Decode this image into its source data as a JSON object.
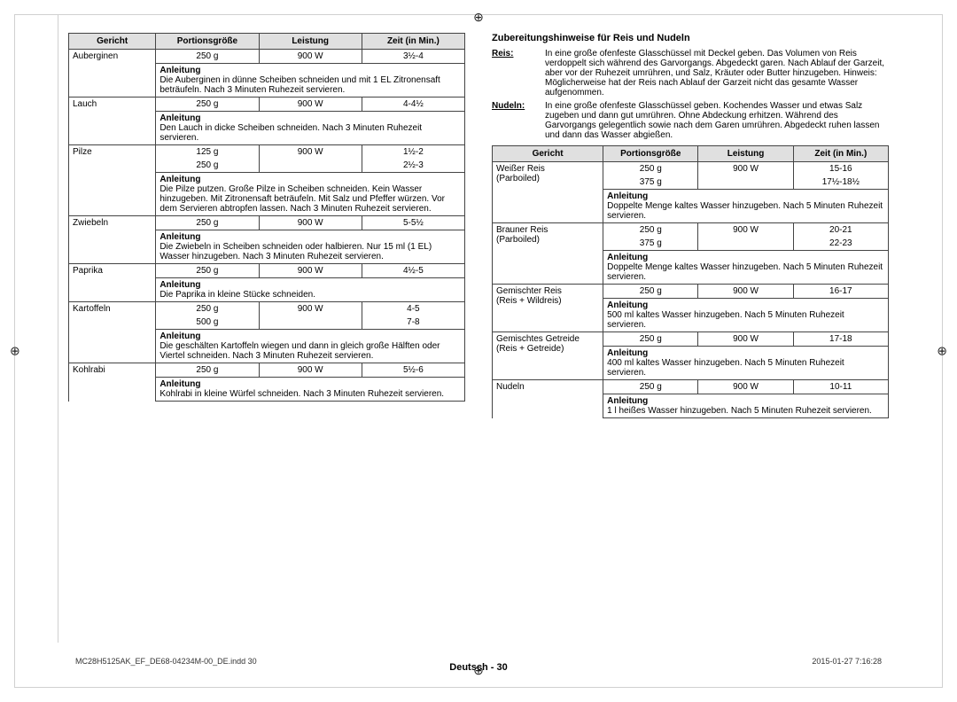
{
  "reg_glyph": "⊕",
  "footer": "Deutsch - 30",
  "imprint_file": "MC28H5125AK_EF_DE68-04234M-00_DE.indd   30",
  "imprint_ts": "2015-01-27   7:16:28",
  "left_table": {
    "headers": [
      "Gericht",
      "Portionsgröße",
      "Leistung",
      "Zeit (in Min.)"
    ],
    "rows": [
      {
        "dish": "Auberginen",
        "portion": "250 g",
        "power": "900 W",
        "time": "3½-4",
        "anleitung": "Die Auberginen in dünne Scheiben schneiden und mit 1 EL Zitronensaft beträufeln. Nach 3 Minuten Ruhezeit servieren."
      },
      {
        "dish": "Lauch",
        "portion": "250 g",
        "power": "900 W",
        "time": "4-4½",
        "anleitung": "Den Lauch in dicke Scheiben schneiden. Nach 3 Minuten Ruhezeit servieren."
      },
      {
        "dish": "Pilze",
        "portion": "125 g",
        "power": "900 W",
        "time": "1½-2",
        "portion2": "250 g",
        "time2": "2½-3",
        "anleitung": "Die Pilze putzen. Große Pilze in Scheiben schneiden. Kein Wasser hinzugeben. Mit Zitronensaft beträufeln. Mit Salz und Pfeffer würzen. Vor dem Servieren abtropfen lassen. Nach 3 Minuten Ruhezeit servieren."
      },
      {
        "dish": "Zwiebeln",
        "portion": "250 g",
        "power": "900 W",
        "time": "5-5½",
        "anleitung": "Die Zwiebeln in Scheiben schneiden oder halbieren. Nur 15 ml (1 EL) Wasser hinzugeben. Nach 3 Minuten Ruhezeit servieren."
      },
      {
        "dish": "Paprika",
        "portion": "250 g",
        "power": "900 W",
        "time": "4½-5",
        "anleitung": "Die Paprika in kleine Stücke schneiden."
      },
      {
        "dish": "Kartoffeln",
        "portion": "250 g",
        "power": "900 W",
        "time": "4-5",
        "portion2": "500 g",
        "time2": "7-8",
        "anleitung": "Die geschälten Kartoffeln wiegen und dann in gleich große Hälften oder Viertel schneiden. Nach 3 Minuten Ruhezeit servieren."
      },
      {
        "dish": "Kohlrabi",
        "portion": "250 g",
        "power": "900 W",
        "time": "5½-6",
        "anleitung": "Kohlrabi in kleine Würfel schneiden. Nach 3 Minuten Ruhezeit servieren."
      }
    ]
  },
  "right_heading": "Zubereitungshinweise für Reis und Nudeln",
  "hints": [
    {
      "label": "Reis:",
      "text": "In eine große ofenfeste Glasschüssel mit Deckel geben. Das Volumen von Reis verdoppelt sich während des Garvorgangs. Abgedeckt garen. Nach Ablauf der Garzeit, aber vor der Ruhezeit umrühren, und Salz, Kräuter oder Butter hinzugeben. Hinweis: Möglicherweise hat der Reis nach Ablauf der Garzeit nicht das gesamte Wasser aufgenommen."
    },
    {
      "label": "Nudeln:",
      "text": "In eine große ofenfeste Glasschüssel geben. Kochendes Wasser und etwas Salz zugeben und dann gut umrühren. Ohne Abdeckung erhitzen. Während des Garvorgangs gelegentlich sowie nach dem Garen umrühren. Abgedeckt ruhen lassen und dann das Wasser abgießen."
    }
  ],
  "right_table": {
    "headers": [
      "Gericht",
      "Portionsgröße",
      "Leistung",
      "Zeit (in Min.)"
    ],
    "rows": [
      {
        "dish": "Weißer Reis (Parboiled)",
        "portion": "250 g",
        "power": "900 W",
        "time": "15-16",
        "portion2": "375 g",
        "time2": "17½-18½",
        "anleitung": "Doppelte Menge kaltes Wasser hinzugeben. Nach 5 Minuten Ruhezeit servieren."
      },
      {
        "dish": "Brauner Reis (Parboiled)",
        "portion": "250 g",
        "power": "900 W",
        "time": "20-21",
        "portion2": "375 g",
        "time2": "22-23",
        "anleitung": "Doppelte Menge kaltes Wasser hinzugeben. Nach 5 Minuten Ruhezeit servieren."
      },
      {
        "dish": "Gemischter Reis (Reis + Wildreis)",
        "portion": "250 g",
        "power": "900 W",
        "time": "16-17",
        "anleitung": "500 ml kaltes Wasser hinzugeben. Nach 5 Minuten Ruhezeit servieren."
      },
      {
        "dish": "Gemischtes Getreide (Reis + Getreide)",
        "portion": "250 g",
        "power": "900 W",
        "time": "17-18",
        "anleitung": "400 ml kaltes Wasser hinzugeben. Nach 5 Minuten Ruhezeit servieren."
      },
      {
        "dish": "Nudeln",
        "portion": "250 g",
        "power": "900 W",
        "time": "10-11",
        "anleitung": "1 l heißes Wasser hinzugeben. Nach 5 Minuten Ruhezeit servieren."
      }
    ]
  },
  "anleitung_label": "Anleitung"
}
